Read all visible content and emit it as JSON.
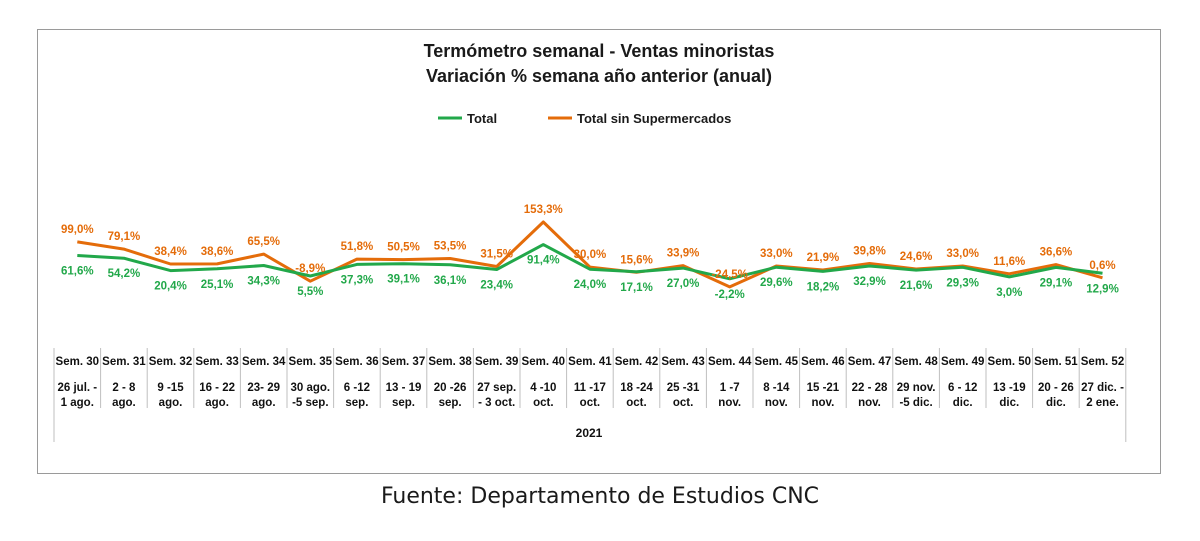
{
  "source": "Fuente: Departamento de Estudios CNC",
  "colors": {
    "total": "#22a84a",
    "sin_super": "#e46c0a",
    "grid": "#bfbfbf"
  },
  "chart_data": {
    "type": "line",
    "title": "Termómetro semanal - Ventas minoristas",
    "subtitle": "Variación % semana año anterior (anual)",
    "legend_position": "top",
    "year_label": "2021",
    "categories": [
      {
        "week": "Sem. 30",
        "range": [
          "26 jul. -",
          "1 ago."
        ]
      },
      {
        "week": "Sem. 31",
        "range": [
          "2 - 8",
          "ago."
        ]
      },
      {
        "week": "Sem. 32",
        "range": [
          "9 -15",
          "ago."
        ]
      },
      {
        "week": "Sem. 33",
        "range": [
          "16 - 22",
          "ago."
        ]
      },
      {
        "week": "Sem. 34",
        "range": [
          "23- 29",
          "ago."
        ]
      },
      {
        "week": "Sem. 35",
        "range": [
          "30 ago.",
          "-5 sep."
        ]
      },
      {
        "week": "Sem. 36",
        "range": [
          "6 -12",
          "sep."
        ]
      },
      {
        "week": "Sem. 37",
        "range": [
          "13 - 19",
          "sep."
        ]
      },
      {
        "week": "Sem. 38",
        "range": [
          "20 -26",
          "sep."
        ]
      },
      {
        "week": "Sem. 39",
        "range": [
          "27 sep.",
          "- 3 oct."
        ]
      },
      {
        "week": "Sem. 40",
        "range": [
          "4 -10",
          "oct."
        ]
      },
      {
        "week": "Sem. 41",
        "range": [
          "11 -17",
          "oct."
        ]
      },
      {
        "week": "Sem. 42",
        "range": [
          "18 -24",
          "oct."
        ]
      },
      {
        "week": "Sem. 43",
        "range": [
          "25 -31",
          "oct."
        ]
      },
      {
        "week": "Sem. 44",
        "range": [
          "1 -7",
          "nov."
        ]
      },
      {
        "week": "Sem. 45",
        "range": [
          "8 -14",
          "nov."
        ]
      },
      {
        "week": "Sem. 46",
        "range": [
          "15 -21",
          "nov."
        ]
      },
      {
        "week": "Sem. 47",
        "range": [
          "22 - 28",
          "nov."
        ]
      },
      {
        "week": "Sem. 48",
        "range": [
          "29 nov.",
          "-5 dic."
        ]
      },
      {
        "week": "Sem. 49",
        "range": [
          "6 - 12",
          "dic."
        ]
      },
      {
        "week": "Sem. 50",
        "range": [
          "13 -19",
          "dic."
        ]
      },
      {
        "week": "Sem. 51",
        "range": [
          "20 - 26",
          "dic."
        ]
      },
      {
        "week": "Sem. 52",
        "range": [
          "27 dic. -",
          "2 ene."
        ]
      }
    ],
    "series": [
      {
        "name": "Total",
        "values": [
          61.6,
          54.2,
          20.4,
          25.1,
          34.3,
          5.5,
          37.3,
          39.1,
          36.1,
          23.4,
          91.4,
          24.0,
          17.1,
          27.0,
          -2.2,
          29.6,
          18.2,
          32.9,
          21.6,
          29.3,
          3.0,
          29.1,
          12.9
        ],
        "labels": [
          "61,6%",
          "54,2%",
          "20,4%",
          "25,1%",
          "34,3%",
          "5,5%",
          "37,3%",
          "39,1%",
          "36,1%",
          "23,4%",
          "91,4%",
          "24,0%",
          "17,1%",
          "27,0%",
          "-2,2%",
          "29,6%",
          "18,2%",
          "32,9%",
          "21,6%",
          "29,3%",
          "3,0%",
          "29,1%",
          "12,9%"
        ]
      },
      {
        "name": "Total sin Supermercados",
        "values": [
          99.0,
          79.1,
          38.4,
          38.6,
          65.5,
          -8.9,
          51.8,
          50.5,
          53.5,
          31.5,
          153.3,
          30.0,
          15.6,
          33.9,
          -24.5,
          33.0,
          21.9,
          39.8,
          24.6,
          33.0,
          11.6,
          36.6,
          0.6
        ],
        "labels": [
          "99,0%",
          "79,1%",
          "38,4%",
          "38,6%",
          "65,5%",
          "-8,9%",
          "51,8%",
          "50,5%",
          "53,5%",
          "31,5%",
          "153,3%",
          "30,0%",
          "15,6%",
          "33,9%",
          "-24,5%",
          "33,0%",
          "21,9%",
          "39,8%",
          "24,6%",
          "33,0%",
          "11,6%",
          "36,6%",
          "0,6%"
        ]
      }
    ]
  }
}
